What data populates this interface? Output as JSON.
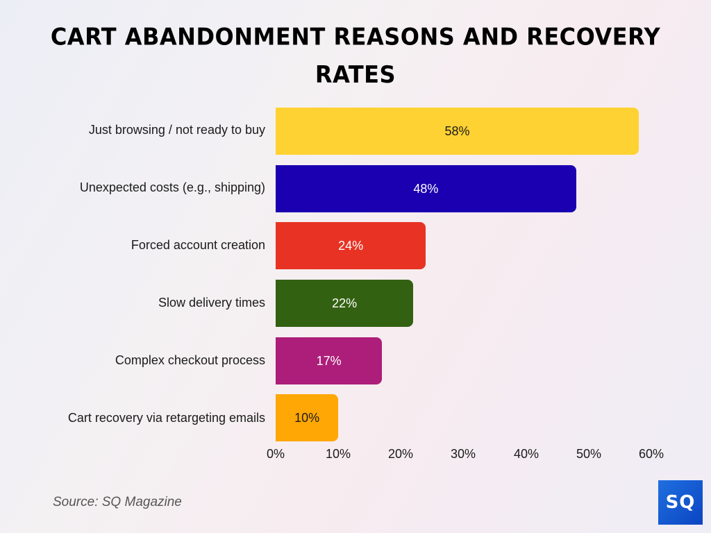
{
  "title": "CART ABANDONMENT REASONS AND RECOVERY RATES",
  "source": "Source: SQ Magazine",
  "logo": {
    "text": "SQ",
    "color": "#1656d6"
  },
  "bars": [
    {
      "label": "Just browsing / not ready to buy",
      "value": 58,
      "value_label": "58%",
      "color": "#ffd233",
      "text_color": "#1a1a1a"
    },
    {
      "label": "Unexpected costs (e.g., shipping)",
      "value": 48,
      "value_label": "48%",
      "color": "#1a00b0",
      "text_color": "#ffffff"
    },
    {
      "label": "Forced account creation",
      "value": 24,
      "value_label": "24%",
      "color": "#e83324",
      "text_color": "#ffffff"
    },
    {
      "label": "Slow delivery times",
      "value": 22,
      "value_label": "22%",
      "color": "#336112",
      "text_color": "#ffffff"
    },
    {
      "label": "Complex checkout process",
      "value": 17,
      "value_label": "17%",
      "color": "#ac1e79",
      "text_color": "#ffffff"
    },
    {
      "label": "Cart recovery via retargeting emails",
      "value": 10,
      "value_label": "10%",
      "color": "#fea705",
      "text_color": "#1a1a1a"
    }
  ],
  "axis": {
    "ticks": [
      "0%",
      "10%",
      "20%",
      "30%",
      "40%",
      "50%",
      "60%"
    ]
  },
  "chart_data": {
    "type": "bar",
    "orientation": "horizontal",
    "title": "CART ABANDONMENT REASONS AND RECOVERY RATES",
    "categories": [
      "Just browsing / not ready to buy",
      "Unexpected costs (e.g., shipping)",
      "Forced account creation",
      "Slow delivery times",
      "Complex checkout process",
      "Cart recovery via retargeting emails"
    ],
    "values": [
      58,
      48,
      24,
      22,
      17,
      10
    ],
    "colors": [
      "#ffd233",
      "#1a00b0",
      "#e83324",
      "#336112",
      "#ac1e79",
      "#fea705"
    ],
    "xlabel": "",
    "ylabel": "",
    "xlim": [
      0,
      60
    ],
    "x_ticks": [
      "0%",
      "10%",
      "20%",
      "30%",
      "40%",
      "50%",
      "60%"
    ],
    "data_labels": [
      "58%",
      "48%",
      "24%",
      "22%",
      "17%",
      "10%"
    ],
    "grid": false,
    "legend": null,
    "annotations": [
      "Source: SQ Magazine"
    ]
  }
}
